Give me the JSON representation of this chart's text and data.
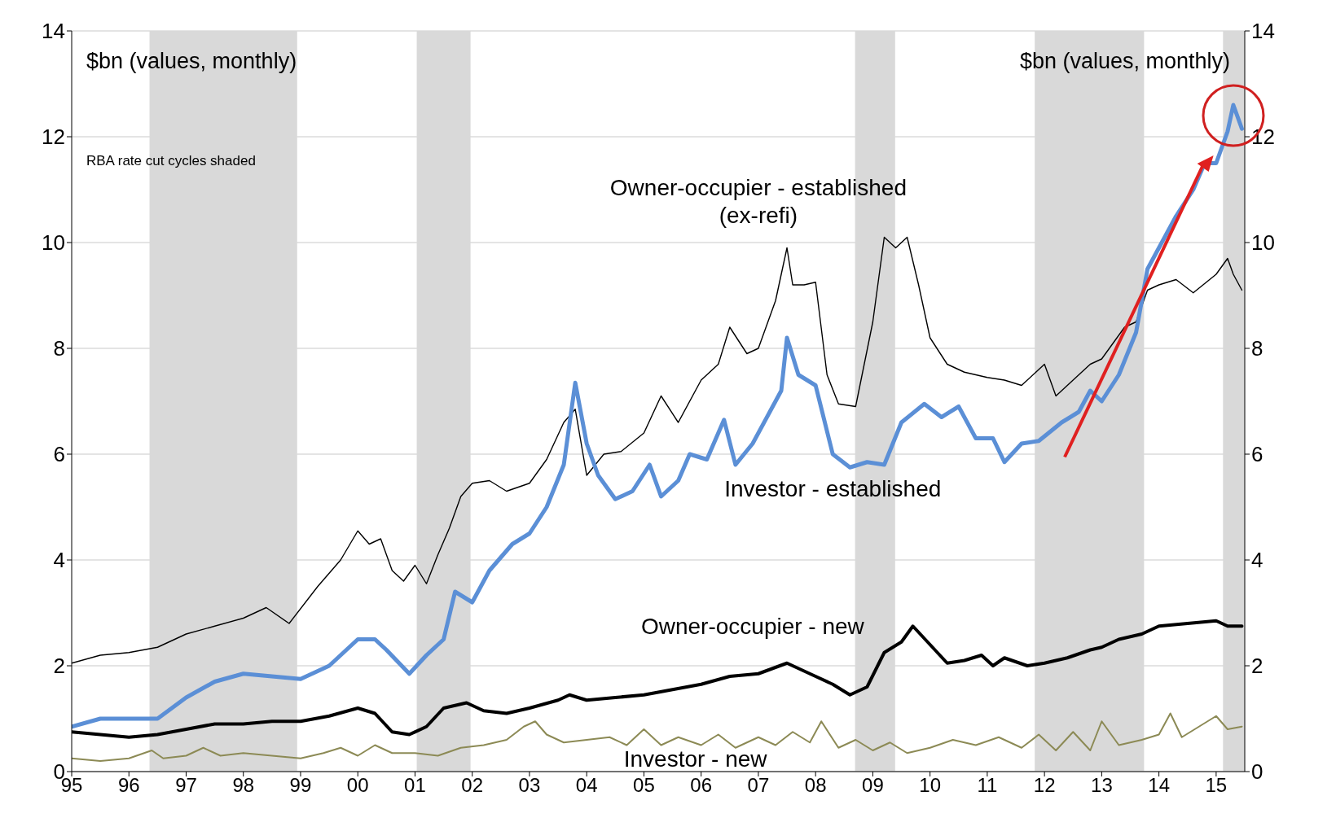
{
  "chart_data": {
    "type": "line",
    "ylabel": "$bn (values, monthly)",
    "y2label": "$bn (values, monthly)",
    "annotations": [
      "RBA rate cut cycles shaded"
    ],
    "xlim": [
      1995,
      2015.5
    ],
    "xticks": [
      {
        "value": 1995,
        "label": "95"
      },
      {
        "value": 1996,
        "label": "96"
      },
      {
        "value": 1997,
        "label": "97"
      },
      {
        "value": 1998,
        "label": "98"
      },
      {
        "value": 1999,
        "label": "99"
      },
      {
        "value": 2000,
        "label": "00"
      },
      {
        "value": 2001,
        "label": "01"
      },
      {
        "value": 2002,
        "label": "02"
      },
      {
        "value": 2003,
        "label": "03"
      },
      {
        "value": 2004,
        "label": "04"
      },
      {
        "value": 2005,
        "label": "05"
      },
      {
        "value": 2006,
        "label": "06"
      },
      {
        "value": 2007,
        "label": "07"
      },
      {
        "value": 2008,
        "label": "08"
      },
      {
        "value": 2009,
        "label": "09"
      },
      {
        "value": 2010,
        "label": "10"
      },
      {
        "value": 2011,
        "label": "11"
      },
      {
        "value": 2012,
        "label": "12"
      },
      {
        "value": 2013,
        "label": "13"
      },
      {
        "value": 2014,
        "label": "14"
      },
      {
        "value": 2015,
        "label": "15"
      }
    ],
    "ylim": [
      0,
      14
    ],
    "yticks": [
      0,
      2,
      4,
      6,
      8,
      10,
      12,
      14
    ],
    "y2lim": [
      0,
      14
    ],
    "y2ticks": [
      0,
      2,
      4,
      6,
      8,
      10,
      12,
      14
    ],
    "grid": "y",
    "legend": false,
    "marker": "none",
    "line_style": "solid",
    "bands": [
      {
        "axis": "x",
        "from": 1996.36,
        "to": 1998.94,
        "color": "#d9d9d9"
      },
      {
        "axis": "x",
        "from": 2001.03,
        "to": 2001.97,
        "color": "#d9d9d9"
      },
      {
        "axis": "x",
        "from": 2008.69,
        "to": 2009.39,
        "color": "#d9d9d9"
      },
      {
        "axis": "x",
        "from": 2011.83,
        "to": 2013.74,
        "color": "#d9d9d9"
      },
      {
        "axis": "x",
        "from": 2015.12,
        "to": 2015.5,
        "color": "#d9d9d9"
      }
    ],
    "series": [
      {
        "name": "Owner-occupier - established (ex-refi)",
        "color": "#000000",
        "x": [
          1995,
          1995.5,
          1996,
          1996.5,
          1997,
          1997.5,
          1998,
          1998.4,
          1998.8,
          1999.3,
          1999.7,
          2000,
          2000.2,
          2000.4,
          2000.6,
          2000.8,
          2001,
          2001.2,
          2001.4,
          2001.6,
          2001.8,
          2002,
          2002.3,
          2002.6,
          2003,
          2003.3,
          2003.6,
          2003.8,
          2004,
          2004.3,
          2004.6,
          2005,
          2005.3,
          2005.6,
          2006,
          2006.3,
          2006.5,
          2006.8,
          2007,
          2007.3,
          2007.5,
          2007.6,
          2007.8,
          2008,
          2008.2,
          2008.4,
          2008.7,
          2009,
          2009.2,
          2009.4,
          2009.6,
          2009.8,
          2010,
          2010.3,
          2010.6,
          2011,
          2011.3,
          2011.6,
          2011.9,
          2012,
          2012.2,
          2012.5,
          2012.8,
          2013,
          2013.4,
          2013.6,
          2013.8,
          2014,
          2014.3,
          2014.6,
          2015,
          2015.2,
          2015.3,
          2015.45
        ],
        "values": [
          2.05,
          2.2,
          2.25,
          2.35,
          2.6,
          2.75,
          2.9,
          3.1,
          2.8,
          3.5,
          4.0,
          4.55,
          4.3,
          4.4,
          3.8,
          3.6,
          3.9,
          3.55,
          4.1,
          4.6,
          5.2,
          5.45,
          5.5,
          5.3,
          5.45,
          5.9,
          6.6,
          6.85,
          5.6,
          6.0,
          6.05,
          6.4,
          7.1,
          6.6,
          7.4,
          7.7,
          8.4,
          7.9,
          8.0,
          8.9,
          9.9,
          9.2,
          9.2,
          9.25,
          7.5,
          6.95,
          6.9,
          8.5,
          10.1,
          9.9,
          10.1,
          9.2,
          8.2,
          7.7,
          7.55,
          7.45,
          7.4,
          7.3,
          7.6,
          7.7,
          7.1,
          7.4,
          7.7,
          7.8,
          8.4,
          8.5,
          9.1,
          9.2,
          9.3,
          9.05,
          9.4,
          9.7,
          9.4,
          9.1
        ]
      },
      {
        "name": "Investor - established",
        "color": "#5b8fd6",
        "x": [
          1995,
          1995.5,
          1996,
          1996.5,
          1997,
          1997.5,
          1998,
          1998.5,
          1999,
          1999.5,
          2000,
          2000.3,
          2000.5,
          2000.9,
          2001.2,
          2001.5,
          2001.7,
          2002,
          2002.3,
          2002.7,
          2003,
          2003.3,
          2003.6,
          2003.8,
          2004,
          2004.2,
          2004.5,
          2004.8,
          2005.1,
          2005.3,
          2005.6,
          2005.8,
          2006.1,
          2006.4,
          2006.6,
          2006.9,
          2007.2,
          2007.4,
          2007.5,
          2007.7,
          2008,
          2008.3,
          2008.6,
          2008.9,
          2009.2,
          2009.5,
          2009.9,
          2010.2,
          2010.5,
          2010.8,
          2011.1,
          2011.3,
          2011.6,
          2011.9,
          2012.3,
          2012.6,
          2012.8,
          2013,
          2013.3,
          2013.6,
          2013.8,
          2014,
          2014.3,
          2014.6,
          2014.8,
          2015,
          2015.2,
          2015.3,
          2015.45
        ],
        "values": [
          0.85,
          1.0,
          1.0,
          1.0,
          1.4,
          1.7,
          1.85,
          1.8,
          1.75,
          2.0,
          2.5,
          2.5,
          2.3,
          1.85,
          2.2,
          2.5,
          3.4,
          3.2,
          3.8,
          4.3,
          4.5,
          5.0,
          5.8,
          7.35,
          6.2,
          5.6,
          5.15,
          5.3,
          5.8,
          5.2,
          5.5,
          6.0,
          5.9,
          6.65,
          5.8,
          6.2,
          6.8,
          7.2,
          8.2,
          7.5,
          7.3,
          6.0,
          5.75,
          5.85,
          5.8,
          6.6,
          6.95,
          6.7,
          6.9,
          6.3,
          6.3,
          5.85,
          6.2,
          6.25,
          6.6,
          6.8,
          7.2,
          7.0,
          7.5,
          8.3,
          9.5,
          9.9,
          10.5,
          11.0,
          11.5,
          11.5,
          12.1,
          12.6,
          12.15
        ]
      },
      {
        "name": "Owner-occupier - new",
        "color": "#000000",
        "x": [
          1995,
          1995.5,
          1996,
          1996.5,
          1997,
          1997.5,
          1998,
          1998.5,
          1999,
          1999.5,
          2000,
          2000.3,
          2000.6,
          2000.9,
          2001.2,
          2001.5,
          2001.9,
          2002.2,
          2002.6,
          2003,
          2003.5,
          2003.7,
          2004,
          2004.5,
          2005,
          2005.5,
          2006,
          2006.5,
          2007,
          2007.5,
          2008,
          2008.3,
          2008.6,
          2008.9,
          2009.2,
          2009.5,
          2009.7,
          2010,
          2010.3,
          2010.6,
          2010.9,
          2011.1,
          2011.3,
          2011.7,
          2012,
          2012.4,
          2012.8,
          2013,
          2013.3,
          2013.7,
          2014,
          2014.5,
          2015,
          2015.2,
          2015.45
        ],
        "values": [
          0.75,
          0.7,
          0.65,
          0.7,
          0.8,
          0.9,
          0.9,
          0.95,
          0.95,
          1.05,
          1.2,
          1.1,
          0.75,
          0.7,
          0.85,
          1.2,
          1.3,
          1.15,
          1.1,
          1.2,
          1.35,
          1.45,
          1.35,
          1.4,
          1.45,
          1.55,
          1.65,
          1.8,
          1.85,
          2.05,
          1.8,
          1.65,
          1.45,
          1.6,
          2.25,
          2.45,
          2.75,
          2.4,
          2.05,
          2.1,
          2.2,
          2.0,
          2.15,
          2.0,
          2.05,
          2.15,
          2.3,
          2.35,
          2.5,
          2.6,
          2.75,
          2.8,
          2.85,
          2.75,
          2.75
        ]
      },
      {
        "name": "Investor - new",
        "color": "#8c8a55",
        "x": [
          1995,
          1995.5,
          1996,
          1996.4,
          1996.6,
          1997,
          1997.3,
          1997.6,
          1998,
          1998.5,
          1999,
          1999.4,
          1999.7,
          2000,
          2000.3,
          2000.6,
          2001,
          2001.4,
          2001.8,
          2002.2,
          2002.6,
          2002.9,
          2003.1,
          2003.3,
          2003.6,
          2004,
          2004.4,
          2004.7,
          2005,
          2005.3,
          2005.6,
          2006,
          2006.3,
          2006.6,
          2007,
          2007.3,
          2007.6,
          2007.9,
          2008.1,
          2008.4,
          2008.7,
          2009,
          2009.3,
          2009.6,
          2010,
          2010.4,
          2010.8,
          2011.2,
          2011.6,
          2011.9,
          2012.2,
          2012.5,
          2012.8,
          2013,
          2013.3,
          2013.7,
          2014,
          2014.2,
          2014.4,
          2014.7,
          2015,
          2015.2,
          2015.45
        ],
        "values": [
          0.25,
          0.2,
          0.25,
          0.4,
          0.25,
          0.3,
          0.45,
          0.3,
          0.35,
          0.3,
          0.25,
          0.35,
          0.45,
          0.3,
          0.5,
          0.35,
          0.35,
          0.3,
          0.45,
          0.5,
          0.6,
          0.85,
          0.95,
          0.7,
          0.55,
          0.6,
          0.65,
          0.5,
          0.8,
          0.5,
          0.65,
          0.5,
          0.7,
          0.45,
          0.65,
          0.5,
          0.75,
          0.55,
          0.95,
          0.45,
          0.6,
          0.4,
          0.55,
          0.35,
          0.45,
          0.6,
          0.5,
          0.65,
          0.45,
          0.7,
          0.4,
          0.75,
          0.4,
          0.95,
          0.5,
          0.6,
          0.7,
          1.1,
          0.65,
          0.85,
          1.05,
          0.8,
          0.85
        ]
      }
    ]
  }
}
